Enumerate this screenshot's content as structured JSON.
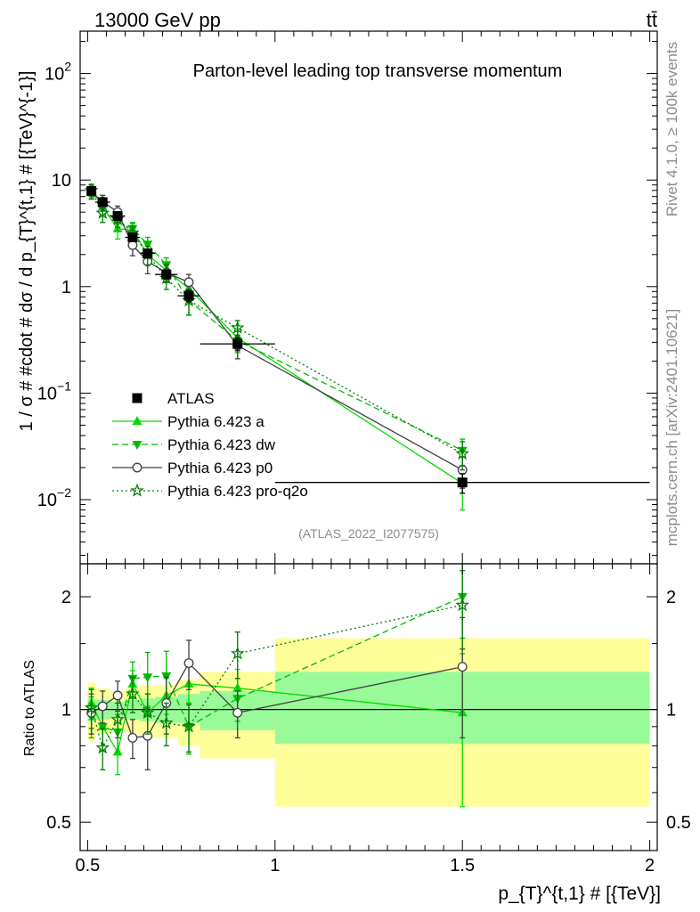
{
  "header": {
    "left_text": "13000 GeV pp",
    "right_text": "tt̄"
  },
  "side_labels": {
    "rivet": "Rivet 4.1.0, ≥ 100k events",
    "mcplots": "mcplots.cern.ch [arXiv:2401.10621]"
  },
  "chart_data": [
    {
      "type": "line",
      "panel": "main",
      "title": "Parton-level leading top transverse momentum",
      "analysis_id": "(ATLAS_2022_I2077575)",
      "ylabel": "1 / σ # #cdot # dσ / d p_{T}^{t,1} # [{TeV}^{-1}]",
      "yscale": "log",
      "ylim": [
        0.0025,
        250
      ],
      "xlim": [
        0.48,
        2.02
      ],
      "y_ticks": [
        {
          "value": 0.01,
          "base": "10",
          "exp": "−2"
        },
        {
          "value": 0.1,
          "base": "10",
          "exp": "−1"
        },
        {
          "value": 1,
          "base": "1",
          "exp": ""
        },
        {
          "value": 10,
          "base": "10",
          "exp": ""
        },
        {
          "value": 100,
          "base": "10",
          "exp": "2"
        }
      ],
      "legend_position": "bottom-left",
      "series": [
        {
          "name": "ATLAS",
          "style": "data",
          "color": "#000000",
          "marker": "square",
          "line": "none",
          "x": [
            0.51,
            0.54,
            0.58,
            0.62,
            0.66,
            0.71,
            0.77,
            0.9,
            1.5
          ],
          "y": [
            7.9,
            6.2,
            4.6,
            2.9,
            2.05,
            1.3,
            0.82,
            0.29,
            0.0145
          ],
          "bins": [
            [
              0.5,
              0.52
            ],
            [
              0.52,
              0.56
            ],
            [
              0.56,
              0.6
            ],
            [
              0.6,
              0.64
            ],
            [
              0.64,
              0.68
            ],
            [
              0.68,
              0.74
            ],
            [
              0.74,
              0.8
            ],
            [
              0.8,
              1.0
            ],
            [
              1.0,
              2.0
            ]
          ],
          "err_lo": [
            0.6,
            0.5,
            0.4,
            0.25,
            0.2,
            0.12,
            0.1,
            0.04,
            0.003
          ],
          "err_hi": [
            0.6,
            0.5,
            0.4,
            0.25,
            0.2,
            0.12,
            0.1,
            0.04,
            0.003
          ]
        },
        {
          "name": "Pythia 6.423 a",
          "style": "solid",
          "color": "#00dd00",
          "marker": "triangle-up",
          "x": [
            0.51,
            0.54,
            0.58,
            0.62,
            0.66,
            0.71,
            0.77,
            0.9,
            1.5
          ],
          "y": [
            8.2,
            5.6,
            3.5,
            3.4,
            2.0,
            1.42,
            0.96,
            0.33,
            0.0142
          ],
          "err_lo": [
            1.0,
            0.9,
            0.7,
            0.5,
            0.4,
            0.26,
            0.2,
            0.07,
            0.0062
          ],
          "err_hi": [
            1.0,
            0.9,
            0.7,
            0.5,
            0.4,
            0.26,
            0.2,
            0.07,
            0.0062
          ]
        },
        {
          "name": "Pythia 6.423 dw",
          "style": "dashed",
          "color": "#00bb00",
          "marker": "triangle-down",
          "x": [
            0.51,
            0.54,
            0.58,
            0.62,
            0.66,
            0.71,
            0.77,
            0.9,
            1.5
          ],
          "y": [
            7.6,
            5.6,
            4.0,
            3.5,
            2.5,
            1.6,
            0.74,
            0.31,
            0.029
          ],
          "err_lo": [
            1.0,
            0.9,
            0.7,
            0.5,
            0.4,
            0.26,
            0.2,
            0.07,
            0.008
          ],
          "err_hi": [
            1.0,
            0.9,
            0.7,
            0.5,
            0.4,
            0.26,
            0.2,
            0.07,
            0.008
          ]
        },
        {
          "name": "Pythia 6.423 p0",
          "style": "solid",
          "color": "#404040",
          "marker": "circle-open",
          "x": [
            0.51,
            0.54,
            0.58,
            0.62,
            0.66,
            0.71,
            0.77,
            0.9,
            1.5
          ],
          "y": [
            7.7,
            6.3,
            5.0,
            2.45,
            1.72,
            1.35,
            1.1,
            0.28,
            0.019
          ],
          "err_lo": [
            1.0,
            0.9,
            0.7,
            0.5,
            0.4,
            0.26,
            0.2,
            0.07,
            0.0062
          ],
          "err_hi": [
            1.0,
            0.9,
            0.7,
            0.5,
            0.4,
            0.26,
            0.2,
            0.07,
            0.0062
          ]
        },
        {
          "name": "Pythia 6.423 pro-q2o",
          "style": "dotted",
          "color": "#007a00",
          "marker": "star",
          "x": [
            0.51,
            0.54,
            0.58,
            0.62,
            0.66,
            0.71,
            0.77,
            0.9,
            1.5
          ],
          "y": [
            8.0,
            4.9,
            4.3,
            3.2,
            2.0,
            1.2,
            0.74,
            0.41,
            0.027
          ],
          "err_lo": [
            1.0,
            0.9,
            0.7,
            0.5,
            0.4,
            0.26,
            0.2,
            0.07,
            0.008
          ],
          "err_hi": [
            1.0,
            0.9,
            0.7,
            0.5,
            0.4,
            0.26,
            0.2,
            0.07,
            0.008
          ]
        }
      ]
    },
    {
      "type": "line",
      "panel": "ratio",
      "ylabel": "Ratio to ATLAS",
      "xlabel": "p_{T}^{t,1} # [{TeV}]",
      "yscale": "log",
      "ylim": [
        0.42,
        2.45
      ],
      "xlim": [
        0.48,
        2.02
      ],
      "y_ticks": [
        0.5,
        1,
        2
      ],
      "x_ticks": [
        0.5,
        1,
        1.5,
        2
      ],
      "x_tick_labels": [
        "0.5",
        "1",
        "1.5",
        "2"
      ],
      "uncertainty_bands": {
        "bins": [
          [
            0.5,
            0.52
          ],
          [
            0.52,
            0.56
          ],
          [
            0.56,
            0.6
          ],
          [
            0.6,
            0.64
          ],
          [
            0.64,
            0.68
          ],
          [
            0.68,
            0.74
          ],
          [
            0.74,
            0.8
          ],
          [
            0.8,
            1.0
          ],
          [
            1.0,
            2.0
          ]
        ],
        "inner_lo": [
          0.93,
          0.94,
          0.95,
          0.94,
          0.93,
          0.92,
          0.92,
          0.88,
          0.81
        ],
        "inner_hi": [
          1.07,
          1.06,
          1.05,
          1.06,
          1.07,
          1.08,
          1.1,
          1.12,
          1.26
        ],
        "outer_lo": [
          0.82,
          0.86,
          0.88,
          0.86,
          0.84,
          0.84,
          0.8,
          0.74,
          0.55
        ],
        "outer_hi": [
          1.18,
          1.14,
          1.12,
          1.14,
          1.16,
          1.16,
          1.2,
          1.26,
          1.55
        ],
        "inner_color": "#99fa99",
        "outer_color": "#ffff99"
      },
      "series": [
        {
          "name": "Pythia 6.423 a",
          "color": "#00dd00",
          "style": "solid",
          "marker": "triangle-up",
          "x": [
            0.51,
            0.54,
            0.58,
            0.62,
            0.66,
            0.71,
            0.77,
            0.9,
            1.5
          ],
          "y": [
            1.04,
            0.9,
            0.77,
            1.17,
            0.98,
            1.09,
            1.17,
            1.14,
            0.98
          ],
          "err_lo": [
            0.1,
            0.12,
            0.1,
            0.1,
            0.12,
            0.12,
            0.13,
            0.14,
            0.43
          ],
          "err_hi": [
            0.1,
            0.12,
            0.1,
            0.1,
            0.12,
            0.12,
            0.13,
            0.14,
            0.43
          ]
        },
        {
          "name": "Pythia 6.423 dw",
          "color": "#00bb00",
          "style": "dashed",
          "marker": "triangle-down",
          "x": [
            0.51,
            0.54,
            0.58,
            0.62,
            0.66,
            0.71,
            0.77,
            0.9,
            1.5
          ],
          "y": [
            0.96,
            0.9,
            0.87,
            1.21,
            1.22,
            1.23,
            0.9,
            1.07,
            2.0
          ],
          "err_lo": [
            0.12,
            0.12,
            0.1,
            0.13,
            0.2,
            0.2,
            0.14,
            0.14,
            0.45
          ],
          "err_hi": [
            0.12,
            0.12,
            0.1,
            0.13,
            0.2,
            0.2,
            0.14,
            0.14,
            0.45
          ]
        },
        {
          "name": "Pythia 6.423 p0",
          "color": "#404040",
          "style": "solid",
          "marker": "circle-open",
          "x": [
            0.51,
            0.54,
            0.58,
            0.62,
            0.66,
            0.71,
            0.77,
            0.9,
            1.5
          ],
          "y": [
            0.98,
            1.02,
            1.09,
            0.84,
            0.85,
            1.04,
            1.33,
            0.98,
            1.3
          ],
          "err_lo": [
            0.12,
            0.1,
            0.1,
            0.1,
            0.16,
            0.18,
            0.2,
            0.14,
            0.46
          ],
          "err_hi": [
            0.12,
            0.1,
            0.1,
            0.1,
            0.16,
            0.18,
            0.2,
            0.14,
            0.46
          ]
        },
        {
          "name": "Pythia 6.423 pro-q2o",
          "color": "#007a00",
          "style": "dotted",
          "marker": "star",
          "x": [
            0.51,
            0.54,
            0.58,
            0.62,
            0.66,
            0.71,
            0.77,
            0.9,
            1.5
          ],
          "y": [
            1.01,
            0.79,
            0.94,
            1.1,
            0.98,
            0.92,
            0.9,
            1.41,
            1.9
          ],
          "err_lo": [
            0.12,
            0.1,
            0.1,
            0.12,
            0.12,
            0.12,
            0.13,
            0.2,
            0.45
          ],
          "err_hi": [
            0.12,
            0.1,
            0.1,
            0.12,
            0.12,
            0.12,
            0.13,
            0.2,
            0.45
          ]
        }
      ]
    }
  ]
}
